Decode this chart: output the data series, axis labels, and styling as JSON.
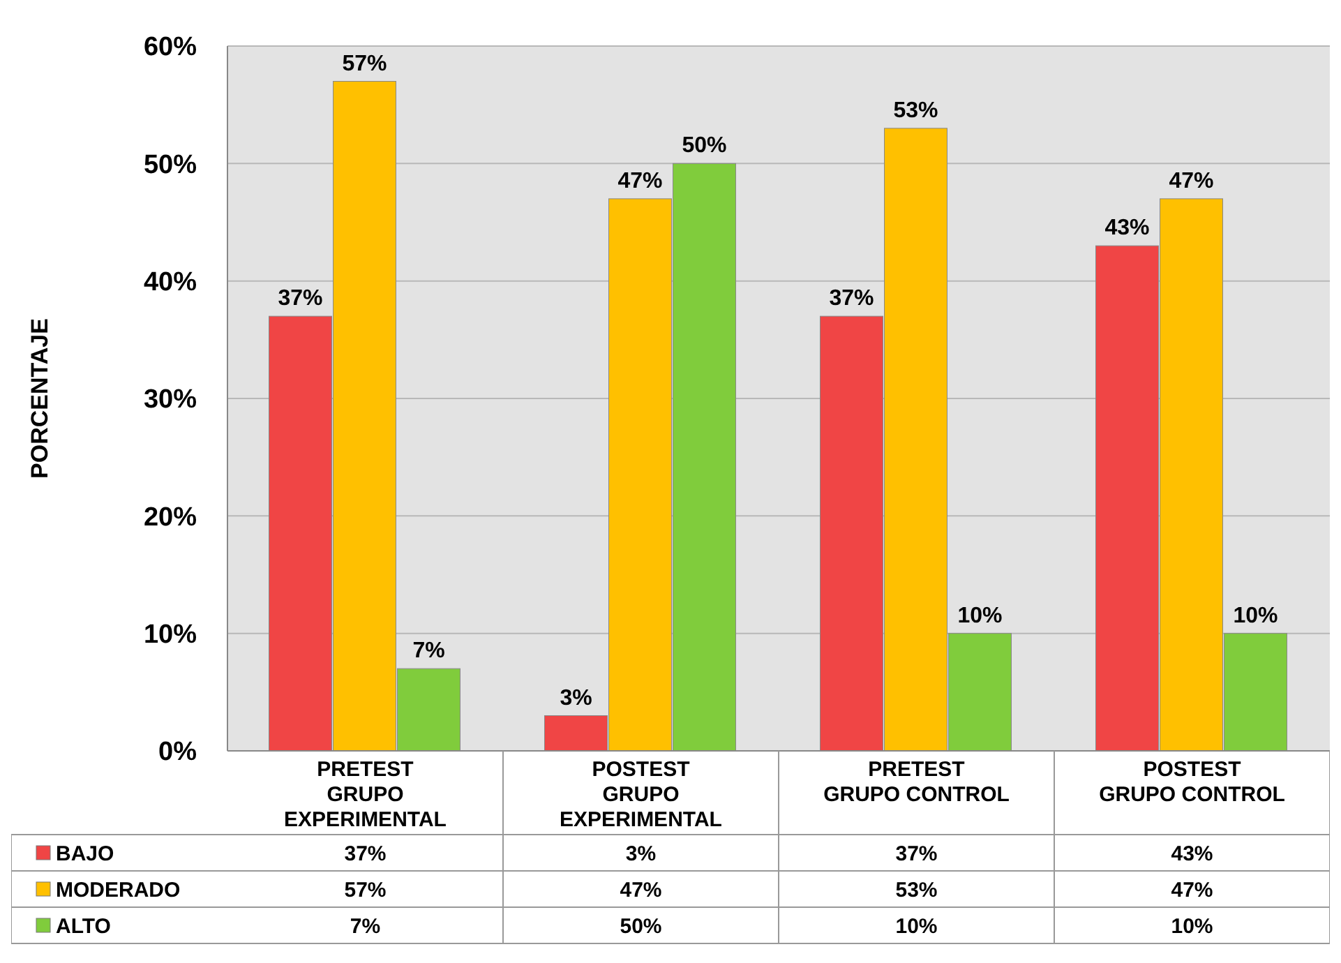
{
  "chart_data": {
    "type": "bar",
    "ylabel": "PORCENTAJE",
    "categories": [
      "PRETEST\nGRUPO\nEXPERIMENTAL",
      "POSTEST\nGRUPO\nEXPERIMENTAL",
      "PRETEST\nGRUPO CONTROL",
      "POSTEST\nGRUPO CONTROL"
    ],
    "series": [
      {
        "name": "BAJO",
        "color": "#f04545",
        "values": [
          37,
          3,
          37,
          43
        ],
        "value_labels": [
          "37%",
          "3%",
          "37%",
          "43%"
        ]
      },
      {
        "name": "MODERADO",
        "color": "#ffc000",
        "values": [
          57,
          47,
          53,
          47
        ],
        "value_labels": [
          "57%",
          "47%",
          "53%",
          "47%"
        ]
      },
      {
        "name": "ALTO",
        "color": "#80cc3c",
        "values": [
          7,
          50,
          10,
          10
        ],
        "value_labels": [
          "7%",
          "50%",
          "10%",
          "10%"
        ]
      }
    ],
    "ylim": [
      0,
      60
    ],
    "yticks": [
      {
        "value": 0,
        "label": "0%"
      },
      {
        "value": 10,
        "label": "10%"
      },
      {
        "value": 20,
        "label": "20%"
      },
      {
        "value": 30,
        "label": "30%"
      },
      {
        "value": 40,
        "label": "40%"
      },
      {
        "value": 50,
        "label": "50%"
      },
      {
        "value": 60,
        "label": "60%"
      }
    ],
    "grid": "y",
    "legend": "bottom"
  }
}
